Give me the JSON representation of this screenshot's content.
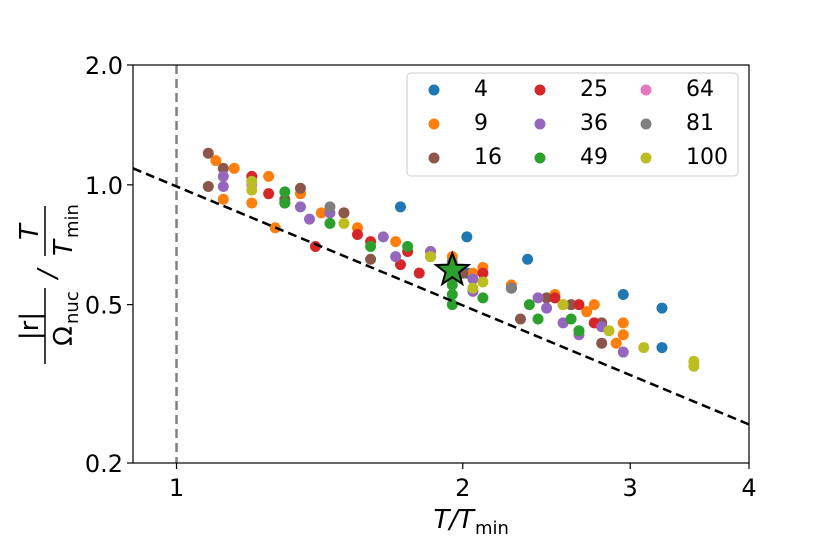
{
  "chart_data": {
    "type": "scatter",
    "x_label": {
      "text": "T/T",
      "sub": "min"
    },
    "y_label": {
      "numerator": "|r|",
      "denominator": "Ω",
      "denominator_sub": "nuc",
      "divider": "/",
      "ratio_numerator": "T",
      "ratio_denominator": "T",
      "ratio_denominator_sub": "min"
    },
    "log_x": true,
    "log_y": true,
    "xlim": [
      0.9,
      4
    ],
    "ylim": [
      0.2,
      2.0
    ],
    "xticks": [
      1,
      2,
      3,
      4
    ],
    "yticks": [
      0.2,
      0.5,
      {
        "value": 1.0,
        "label": "1.0"
      },
      {
        "value": 2.0,
        "label": "2.0"
      }
    ],
    "legend": "upper right",
    "vline": {
      "x": 1,
      "color": "#808080"
    },
    "reference_line": {
      "x": [
        0.9,
        4
      ],
      "y": [
        1.1,
        0.25
      ],
      "color": "#000000"
    },
    "highlight": {
      "x": 1.95,
      "y": 0.61,
      "color": "#2ca02c"
    },
    "series": [
      {
        "name": "4",
        "color": "#1f77b4",
        "x": [
          1.72,
          2.02,
          2.34,
          2.02,
          2.95,
          3.24,
          3.24
        ],
        "values": [
          0.88,
          0.74,
          0.65,
          0.6,
          0.53,
          0.49,
          0.39
        ]
      },
      {
        "name": "9",
        "color": "#ff7f0e",
        "x": [
          1.1,
          1.15,
          1.12,
          1.2,
          1.25,
          1.27,
          1.35,
          1.42,
          1.5,
          1.55,
          1.7,
          1.85,
          1.95,
          2.05,
          2.1,
          2.25,
          2.5,
          2.55,
          2.7,
          2.75,
          2.95,
          2.95,
          2.9
        ],
        "values": [
          1.15,
          1.1,
          0.92,
          0.9,
          1.05,
          0.78,
          0.95,
          0.85,
          0.85,
          0.78,
          0.72,
          0.68,
          0.66,
          0.6,
          0.62,
          0.56,
          0.53,
          0.5,
          0.48,
          0.5,
          0.45,
          0.42,
          0.4
        ]
      },
      {
        "name": "16",
        "color": "#8c564b",
        "x": [
          1.08,
          1.08,
          1.12,
          1.3,
          1.35,
          1.6,
          1.5,
          2.0,
          2.25,
          2.3,
          2.45,
          2.8,
          2.8,
          2.6
        ],
        "values": [
          1.2,
          0.99,
          1.1,
          0.92,
          0.98,
          0.65,
          0.85,
          0.6,
          0.55,
          0.46,
          0.52,
          0.45,
          0.4,
          0.5
        ]
      },
      {
        "name": "25",
        "color": "#d62728",
        "x": [
          1.2,
          1.25,
          1.3,
          1.4,
          1.55,
          1.6,
          1.72,
          1.75,
          1.8,
          1.85,
          1.95,
          2.1,
          2.25,
          2.5,
          2.65,
          2.75
        ],
        "values": [
          1.05,
          0.95,
          0.9,
          0.7,
          0.75,
          0.72,
          0.63,
          0.68,
          0.6,
          0.66,
          0.62,
          0.6,
          0.55,
          0.52,
          0.5,
          0.45
        ]
      },
      {
        "name": "36",
        "color": "#9467bd",
        "x": [
          1.12,
          1.12,
          1.35,
          1.38,
          1.45,
          1.65,
          1.7,
          1.85,
          2.05,
          2.05,
          2.4,
          2.45,
          2.55,
          2.65,
          2.8,
          2.95
        ],
        "values": [
          1.05,
          0.99,
          0.88,
          0.82,
          0.85,
          0.74,
          0.66,
          0.68,
          0.54,
          0.58,
          0.52,
          0.49,
          0.45,
          0.42,
          0.44,
          0.38
        ]
      },
      {
        "name": "49",
        "color": "#2ca02c",
        "x": [
          1.3,
          1.3,
          1.45,
          1.6,
          1.75,
          1.95,
          1.95,
          1.95,
          1.95,
          2.1,
          2.35,
          2.4,
          2.6,
          2.65
        ],
        "values": [
          0.96,
          0.9,
          0.8,
          0.7,
          0.7,
          0.5,
          0.53,
          0.56,
          0.58,
          0.52,
          0.5,
          0.46,
          0.46,
          0.43
        ]
      },
      {
        "name": "64",
        "color": "#e377c2",
        "x": [
          1.2
        ],
        "values": [
          1.0
        ]
      },
      {
        "name": "81",
        "color": "#7f7f7f",
        "x": [
          1.45,
          1.95,
          2.25
        ],
        "values": [
          0.88,
          0.64,
          0.55
        ]
      },
      {
        "name": "100",
        "color": "#bcbd22",
        "x": [
          1.2,
          1.2,
          1.5,
          1.85,
          2.1,
          2.05,
          2.55,
          2.85,
          3.1,
          3.5,
          3.5
        ],
        "values": [
          1.02,
          0.97,
          0.8,
          0.66,
          0.57,
          0.55,
          0.5,
          0.43,
          0.39,
          0.36,
          0.35
        ]
      }
    ]
  }
}
